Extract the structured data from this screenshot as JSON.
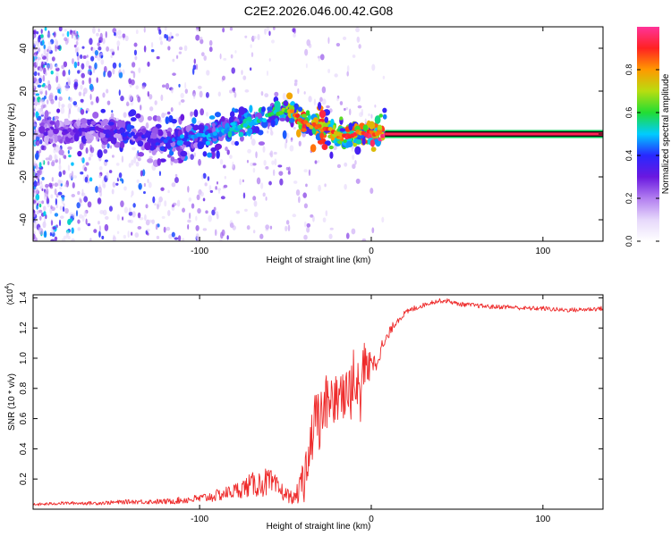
{
  "title": "C2E2.2026.046.00.42.G08",
  "colorbar": {
    "label": "Normalized spectral amplitude",
    "ticks": [
      "0.0",
      "0.2",
      "0.4",
      "0.6",
      "0.8"
    ],
    "tick_values": [
      0,
      0.2,
      0.4,
      0.6,
      0.8
    ],
    "range": [
      0,
      1
    ],
    "colors": [
      "#ffffff",
      "#e6d8fb",
      "#b27ef0",
      "#6a18e0",
      "#2828ff",
      "#00ccff",
      "#22dd33",
      "#b8dd10",
      "#ff9900",
      "#ff2222",
      "#ff3399"
    ]
  },
  "chart_data": [
    {
      "type": "heatmap",
      "name": "spectrogram",
      "title": "C2E2.2026.046.00.42.G08",
      "xlabel": "Height of straight line (km)",
      "ylabel": "Frequency (Hz)",
      "xlim": [
        -197,
        135
      ],
      "ylim": [
        -50,
        50
      ],
      "xticks": [
        -100,
        0,
        100
      ],
      "xtick_labels": [
        "-100",
        "0",
        "100"
      ],
      "yticks": [
        -40,
        -20,
        0,
        20,
        40
      ],
      "ytick_labels": [
        "-40",
        "-20",
        "0",
        "20",
        "40"
      ],
      "ridge": {
        "x": [
          -175,
          -160,
          -150,
          -140,
          -130,
          -120,
          -110,
          -100,
          -90,
          -80,
          -70,
          -60,
          -52,
          -45,
          -40,
          -35,
          -30,
          -25,
          -20,
          -15,
          -10,
          -5,
          0,
          5,
          10,
          20,
          40,
          60,
          80,
          100,
          120,
          135
        ],
        "y": [
          1,
          2,
          1,
          0,
          -2,
          -3,
          -2,
          -1,
          1,
          3,
          5,
          8,
          11,
          10,
          6,
          4,
          3,
          2,
          0,
          -1,
          0,
          1,
          0,
          0,
          0,
          0,
          0,
          0,
          0,
          0,
          0,
          0
        ],
        "amplitude": [
          0.3,
          0.35,
          0.35,
          0.4,
          0.35,
          0.4,
          0.45,
          0.45,
          0.5,
          0.5,
          0.55,
          0.55,
          0.6,
          0.8,
          0.85,
          0.85,
          0.85,
          0.85,
          0.85,
          0.85,
          0.85,
          0.85,
          0.9,
          0.95,
          0.95,
          0.95,
          0.95,
          0.95,
          0.95,
          0.95,
          0.95,
          0.95
        ]
      }
    },
    {
      "type": "line",
      "name": "snr",
      "xlabel": "Height of straight line (km)",
      "ylabel": "SNR (10 * v/v)",
      "y_multiplier": "(x10⁴)",
      "y_multiplier_base": "(x10",
      "y_multiplier_exp": "4",
      "y_multiplier_close": ")",
      "xlim": [
        -197,
        135
      ],
      "ylim": [
        0,
        1.42
      ],
      "xticks": [
        -100,
        0,
        100
      ],
      "xtick_labels": [
        "-100",
        "0",
        "100"
      ],
      "yticks": [
        0.2,
        0.4,
        0.6,
        0.8,
        1.0,
        1.2,
        1.4
      ],
      "ytick_labels": [
        "0.2",
        "0.4",
        "0.6",
        "0.8",
        "1.0",
        "1.2",
        "1.4"
      ],
      "series": [
        {
          "name": "SNR",
          "color": "#ee2a2a",
          "x": [
            -197,
            -180,
            -160,
            -140,
            -120,
            -100,
            -90,
            -80,
            -70,
            -60,
            -50,
            -45,
            -42,
            -40,
            -38,
            -36,
            -34,
            -32,
            -30,
            -28,
            -26,
            -24,
            -22,
            -20,
            -18,
            -16,
            -14,
            -12,
            -10,
            -8,
            -6,
            -4,
            -2,
            0,
            2,
            5,
            8,
            10,
            12,
            15,
            20,
            25,
            30,
            35,
            40,
            45,
            50,
            60,
            70,
            80,
            90,
            100,
            110,
            120,
            135
          ],
          "y": [
            0.03,
            0.04,
            0.04,
            0.05,
            0.05,
            0.07,
            0.09,
            0.12,
            0.16,
            0.18,
            0.1,
            0.07,
            0.12,
            0.2,
            0.3,
            0.38,
            0.5,
            0.6,
            0.55,
            0.7,
            0.68,
            0.62,
            0.7,
            0.78,
            0.72,
            0.8,
            0.88,
            0.75,
            0.9,
            0.85,
            0.82,
            0.98,
            0.9,
            1.02,
            0.95,
            1.05,
            1.1,
            1.15,
            1.2,
            1.25,
            1.3,
            1.33,
            1.35,
            1.37,
            1.38,
            1.38,
            1.36,
            1.35,
            1.34,
            1.34,
            1.33,
            1.33,
            1.32,
            1.32,
            1.33
          ],
          "noise": [
            0.01,
            0.01,
            0.012,
            0.015,
            0.018,
            0.03,
            0.04,
            0.05,
            0.08,
            0.1,
            0.05,
            0.04,
            0.08,
            0.1,
            0.12,
            0.15,
            0.2,
            0.22,
            0.2,
            0.22,
            0.2,
            0.2,
            0.22,
            0.22,
            0.2,
            0.2,
            0.22,
            0.18,
            0.18,
            0.16,
            0.14,
            0.14,
            0.12,
            0.1,
            0.08,
            0.06,
            0.05,
            0.04,
            0.03,
            0.025,
            0.02,
            0.02,
            0.015,
            0.015,
            0.015,
            0.015,
            0.015,
            0.015,
            0.015,
            0.015,
            0.015,
            0.015,
            0.015,
            0.015,
            0.015
          ]
        }
      ]
    }
  ]
}
